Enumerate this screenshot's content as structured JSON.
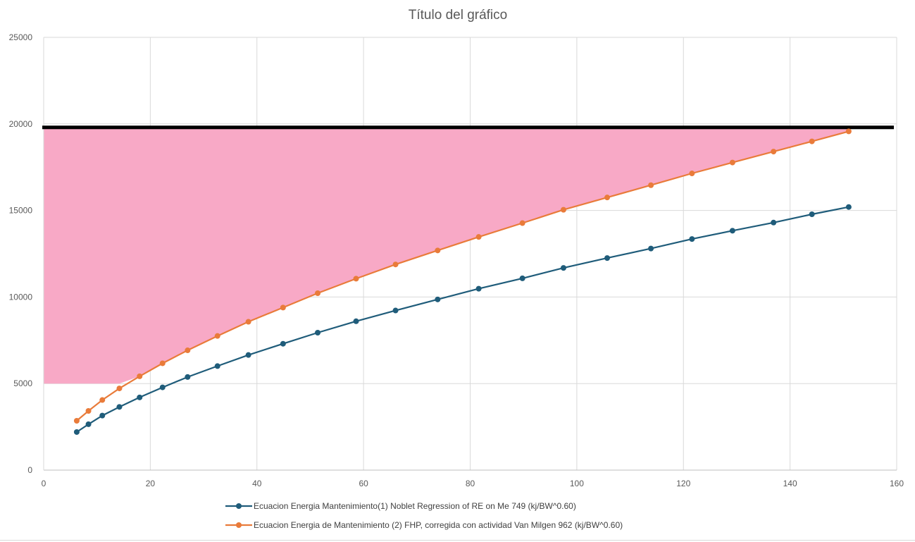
{
  "chart_data": {
    "type": "scatter",
    "title": "Título del gráfico",
    "xlabel": "",
    "ylabel": "",
    "xlim": [
      0,
      160
    ],
    "ylim": [
      0,
      25000
    ],
    "x_ticks": [
      0,
      20,
      40,
      60,
      80,
      100,
      120,
      140,
      160
    ],
    "y_ticks": [
      0,
      5000,
      10000,
      15000,
      20000,
      25000
    ],
    "grid": true,
    "legend_position": "bottom",
    "x": [
      6.2,
      8.4,
      11,
      14.2,
      18,
      22.3,
      27,
      32.6,
      38.4,
      44.9,
      51.4,
      58.6,
      66,
      73.9,
      81.6,
      89.8,
      97.5,
      105.7,
      113.9,
      121.6,
      129.2,
      136.9,
      144.1,
      151
    ],
    "series": [
      {
        "name": "Ecuacion Energia Mantenimiento(1) Noblet Regression of RE on Me 749 (kj/BW^0.60)",
        "color": "#1f5c7a",
        "values": [
          2200,
          2650,
          3150,
          3650,
          4200,
          4780,
          5380,
          6010,
          6650,
          7300,
          7940,
          8600,
          9220,
          9860,
          10480,
          11080,
          11680,
          12250,
          12800,
          13350,
          13830,
          14300,
          14780,
          15200
        ]
      },
      {
        "name": "Ecuacion Energia de Mantenimiento (2) FHP, corregida con actividad Van Milgen 962 (kj/BW^0.60)",
        "color": "#e97b3a",
        "values": [
          2850,
          3420,
          4050,
          4720,
          5420,
          6170,
          6920,
          7750,
          8570,
          9390,
          10220,
          11060,
          11880,
          12690,
          13470,
          14270,
          15040,
          15750,
          16460,
          17140,
          17770,
          18400,
          18990,
          19570
        ]
      }
    ],
    "threshold_line": {
      "y": 19800,
      "color": "#000000"
    },
    "shaded_region": {
      "x_range": [
        0,
        151
      ],
      "y_floor": 5000,
      "y_ceiling": 19800,
      "lower_bound": "orange series",
      "color": "#f8a9c6"
    }
  }
}
